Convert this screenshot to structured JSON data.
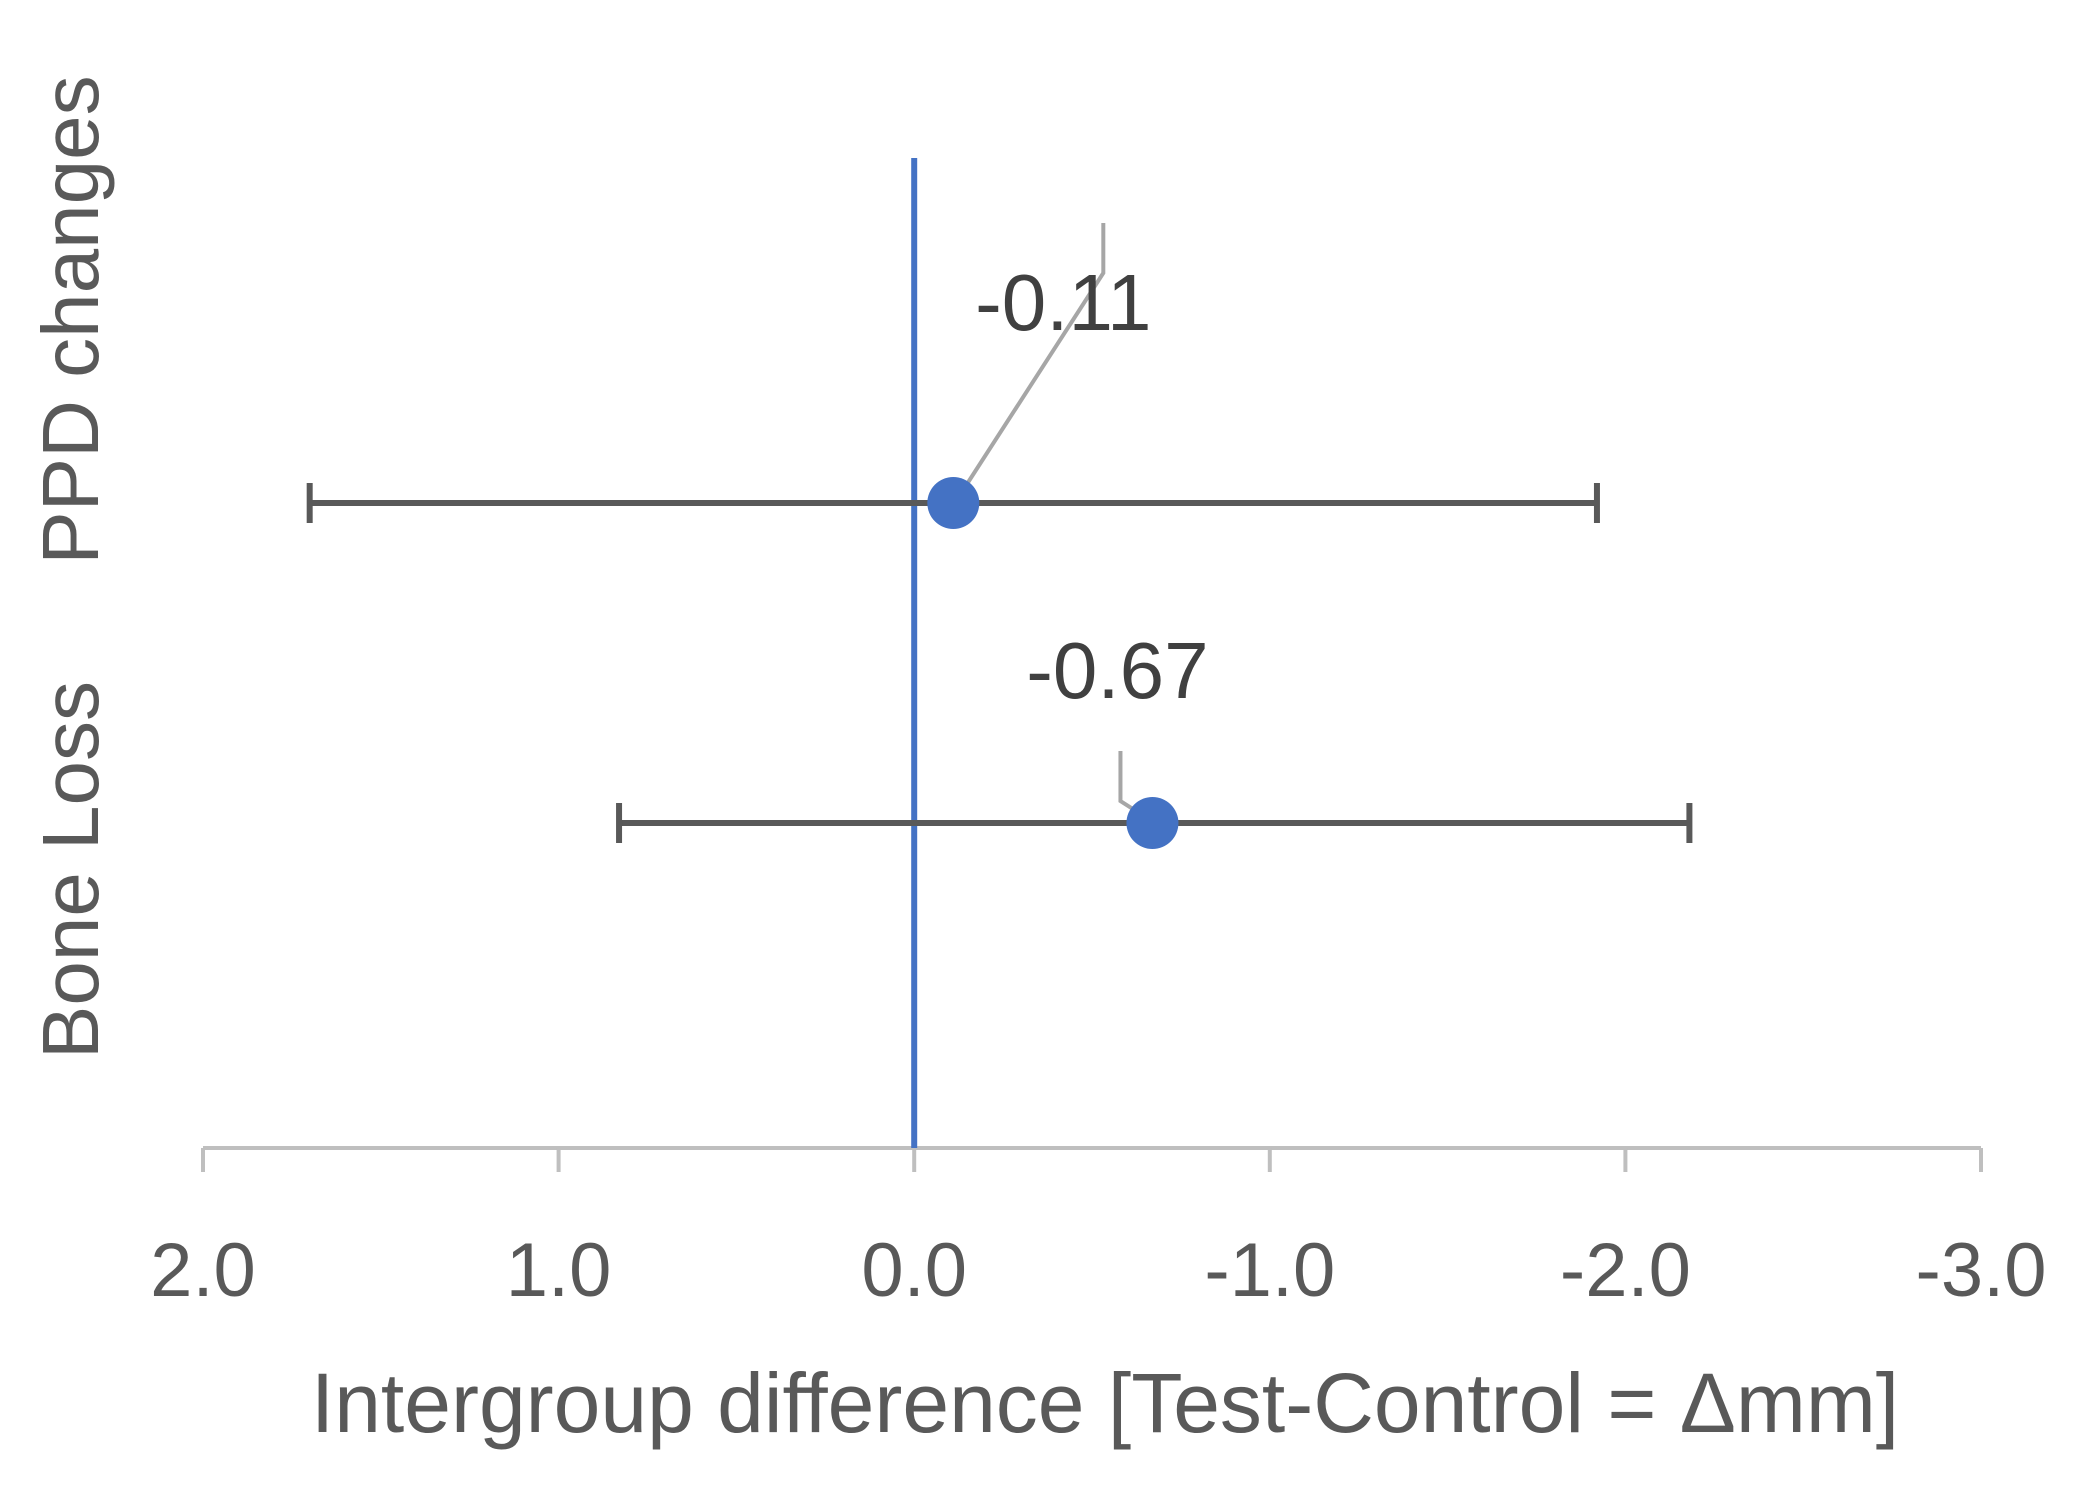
{
  "chart_data": {
    "type": "scatter",
    "subtype": "forest-plot",
    "title": "",
    "xlabel": "Intergroup difference [Test-Control = Δmm]",
    "ylabel": "",
    "x_reversed": true,
    "xlim": [
      2.0,
      -3.0
    ],
    "x_ticks": [
      2.0,
      1.0,
      0.0,
      -1.0,
      -2.0,
      -3.0
    ],
    "x_tick_labels": [
      "2.0",
      "1.0",
      "0.0",
      "-1.0",
      "-2.0",
      "-3.0"
    ],
    "reference_line": 0.0,
    "grid": false,
    "legend": "none",
    "categories": [
      "PPD changes",
      "Bone Loss"
    ],
    "points": [
      {
        "category": "PPD changes",
        "value": -0.11,
        "ci_low": -1.92,
        "ci_high": 1.7,
        "label": "-0.11"
      },
      {
        "category": "Bone Loss",
        "value": -0.67,
        "ci_low": -2.18,
        "ci_high": 0.83,
        "label": "-0.67"
      }
    ],
    "colors": {
      "marker": "#4472C4",
      "reference_line": "#4472C4",
      "error_bar": "#595959",
      "axis": "#BFBFBF",
      "text": "#595959",
      "leader_line": "#A6A6A6"
    }
  }
}
